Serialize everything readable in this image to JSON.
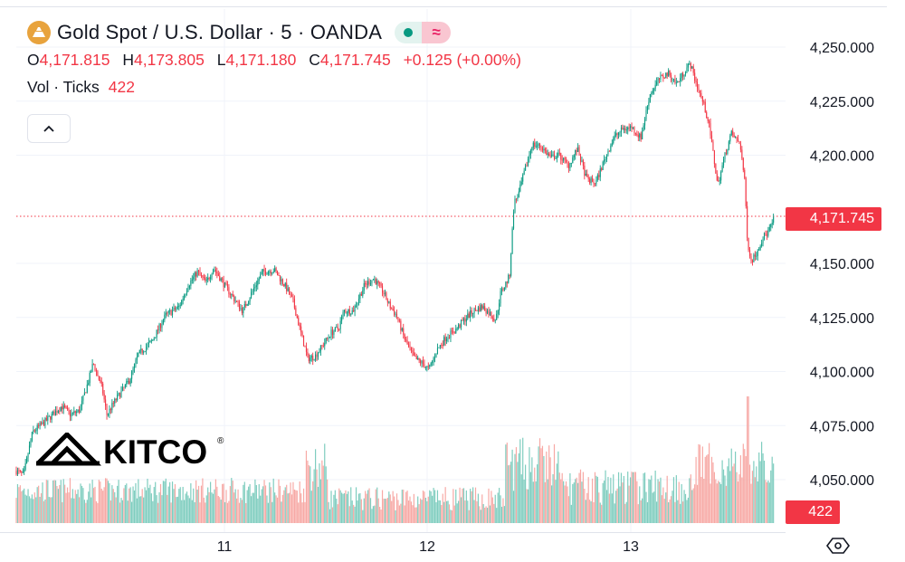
{
  "header": {
    "symbol_title": "Gold Spot / U.S. Dollar · 5 · OANDA",
    "ohlc": [
      {
        "label": "O",
        "value": "4,171.815"
      },
      {
        "label": "H",
        "value": "4,173.805"
      },
      {
        "label": "L",
        "value": "4,171.180"
      },
      {
        "label": "C",
        "value": "4,171.745"
      }
    ],
    "change": "+0.125 (+0.00%)",
    "volume_label": "Vol · Ticks",
    "volume_value": "422",
    "compare_icon_label": "≈"
  },
  "watermark": "KITCO",
  "colors": {
    "up": "#089981",
    "down": "#f23645",
    "vol_up": "#7fcdbf",
    "vol_down": "#f7a9a5",
    "last_price": "#f23645"
  },
  "chart_data": {
    "type": "candlestick",
    "title": "Gold Spot / U.S. Dollar · 5 · OANDA",
    "price_axis": {
      "ticks": [
        "4,250.000",
        "4,225.000",
        "4,200.000",
        "4,150.000",
        "4,125.000",
        "4,100.000",
        "4,075.000",
        "4,050.000"
      ],
      "ylim": [
        4027,
        4262
      ]
    },
    "time_axis": {
      "ticks": [
        "11",
        "12",
        "13"
      ]
    },
    "last_price": "4,171.745",
    "last_volume": "422",
    "close_path": [
      [
        0,
        4054
      ],
      [
        8,
        4052
      ],
      [
        18,
        4072
      ],
      [
        35,
        4078
      ],
      [
        50,
        4084
      ],
      [
        60,
        4080
      ],
      [
        70,
        4082
      ],
      [
        80,
        4096
      ],
      [
        85,
        4104
      ],
      [
        95,
        4092
      ],
      [
        100,
        4080
      ],
      [
        110,
        4087
      ],
      [
        125,
        4096
      ],
      [
        135,
        4108
      ],
      [
        150,
        4114
      ],
      [
        165,
        4126
      ],
      [
        180,
        4130
      ],
      [
        190,
        4140
      ],
      [
        200,
        4146
      ],
      [
        210,
        4141
      ],
      [
        218,
        4148
      ],
      [
        230,
        4140
      ],
      [
        240,
        4134
      ],
      [
        250,
        4128
      ],
      [
        262,
        4138
      ],
      [
        272,
        4146
      ],
      [
        285,
        4147
      ],
      [
        298,
        4139
      ],
      [
        306,
        4132
      ],
      [
        315,
        4117
      ],
      [
        322,
        4106
      ],
      [
        330,
        4107
      ],
      [
        340,
        4113
      ],
      [
        348,
        4118
      ],
      [
        356,
        4120
      ],
      [
        362,
        4128
      ],
      [
        372,
        4128
      ],
      [
        385,
        4140
      ],
      [
        395,
        4143
      ],
      [
        405,
        4137
      ],
      [
        413,
        4130
      ],
      [
        420,
        4126
      ],
      [
        430,
        4114
      ],
      [
        440,
        4106
      ],
      [
        448,
        4104
      ],
      [
        456,
        4101
      ],
      [
        465,
        4110
      ],
      [
        475,
        4116
      ],
      [
        485,
        4119
      ],
      [
        495,
        4124
      ],
      [
        505,
        4128
      ],
      [
        515,
        4130
      ],
      [
        525,
        4126
      ],
      [
        530,
        4124
      ],
      [
        535,
        4136
      ],
      [
        545,
        4144
      ],
      [
        550,
        4178
      ],
      [
        555,
        4182
      ],
      [
        560,
        4190
      ],
      [
        570,
        4205
      ],
      [
        580,
        4204
      ],
      [
        590,
        4199
      ],
      [
        600,
        4200
      ],
      [
        610,
        4195
      ],
      [
        620,
        4203
      ],
      [
        630,
        4189
      ],
      [
        640,
        4187
      ],
      [
        650,
        4198
      ],
      [
        660,
        4208
      ],
      [
        670,
        4212
      ],
      [
        680,
        4213
      ],
      [
        690,
        4208
      ],
      [
        700,
        4228
      ],
      [
        710,
        4235
      ],
      [
        720,
        4238
      ],
      [
        730,
        4233
      ],
      [
        740,
        4240
      ],
      [
        745,
        4242
      ],
      [
        750,
        4235
      ],
      [
        760,
        4223
      ],
      [
        765,
        4215
      ],
      [
        770,
        4201
      ],
      [
        775,
        4186
      ],
      [
        783,
        4200
      ],
      [
        790,
        4210
      ],
      [
        800,
        4205
      ],
      [
        805,
        4187
      ],
      [
        808,
        4160
      ],
      [
        812,
        4151
      ],
      [
        818,
        4155
      ],
      [
        825,
        4162
      ],
      [
        830,
        4164
      ],
      [
        835,
        4168
      ],
      [
        838,
        4171.7
      ]
    ]
  }
}
